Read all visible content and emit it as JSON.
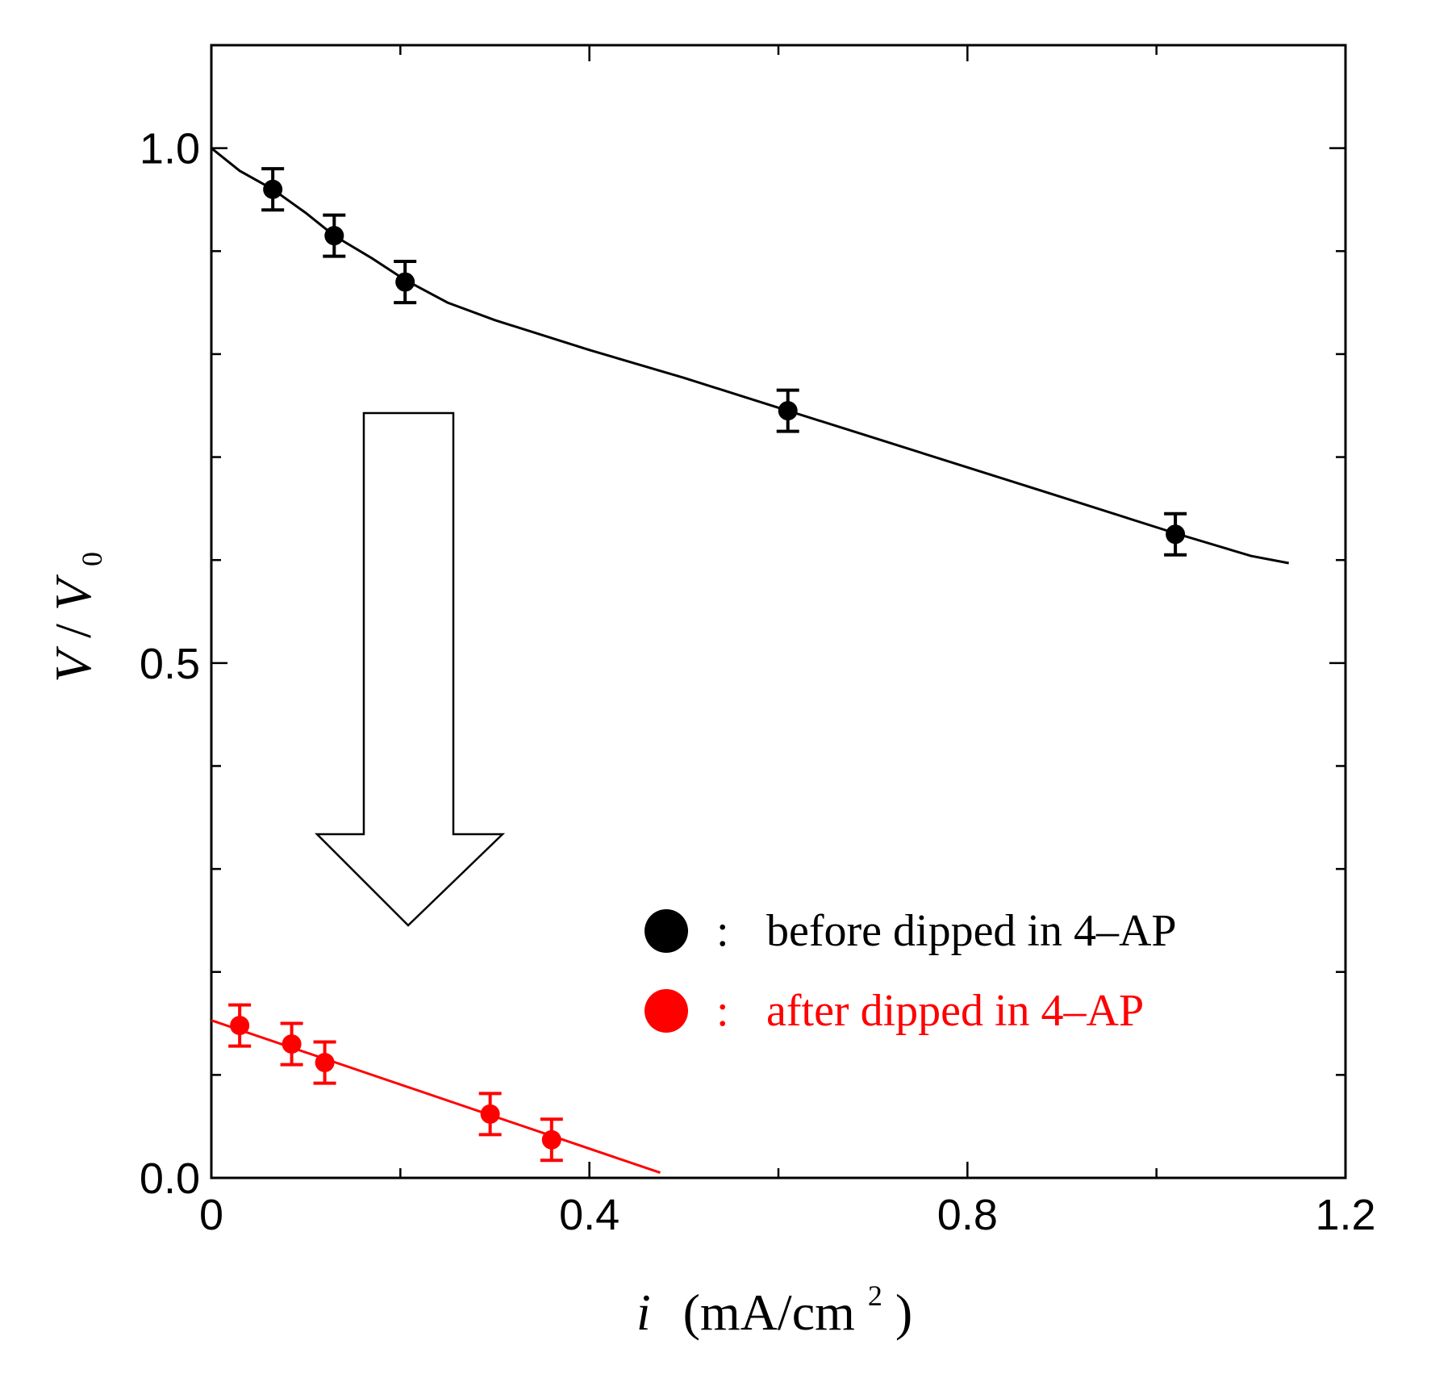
{
  "chart_data": {
    "type": "scatter",
    "title": "",
    "xlabel": {
      "symbol": "i",
      "unit": "(mA/cm",
      "unit_sup": "2",
      "unit_close": ")"
    },
    "ylabel": {
      "numerator": "V",
      "slash": "/",
      "denominator": "V",
      "denominator_sub": "0"
    },
    "xlim": [
      0,
      1.2
    ],
    "ylim": [
      0,
      1.1
    ],
    "x_ticks": [
      {
        "value": 0,
        "label": "0"
      },
      {
        "value": 0.4,
        "label": "0.4"
      },
      {
        "value": 0.8,
        "label": "0.8"
      },
      {
        "value": 1.2,
        "label": "1.2"
      }
    ],
    "y_ticks": [
      {
        "value": 0,
        "label": "0.0"
      },
      {
        "value": 0.5,
        "label": "0.5"
      },
      {
        "value": 1.0,
        "label": "1.0"
      }
    ],
    "x_minor_step": 0.2,
    "y_minor_step": 0.1,
    "grid": false,
    "legend_position": "bottom-right",
    "series": [
      {
        "name": "before dipped in 4–AP",
        "legend_label": "before dipped in 4–AP",
        "legend_sep": ":",
        "color": "#000000",
        "x": [
          0.065,
          0.13,
          0.205,
          0.61,
          1.02
        ],
        "y": [
          0.96,
          0.915,
          0.87,
          0.745,
          0.625
        ],
        "error": [
          0.02,
          0.02,
          0.02,
          0.02,
          0.02
        ],
        "fit": {
          "x": [
            0.0,
            0.03,
            0.065,
            0.1,
            0.13,
            0.17,
            0.205,
            0.25,
            0.3,
            0.4,
            0.5,
            0.61,
            0.7,
            0.8,
            0.9,
            1.02,
            1.1,
            1.14
          ],
          "y": [
            1.0,
            0.978,
            0.96,
            0.937,
            0.915,
            0.893,
            0.872,
            0.85,
            0.833,
            0.804,
            0.777,
            0.745,
            0.719,
            0.69,
            0.661,
            0.626,
            0.604,
            0.597
          ]
        }
      },
      {
        "name": "after dipped in 4–AP",
        "legend_label": "after dipped in 4–AP",
        "legend_sep": ":",
        "color": "#ff0000",
        "x": [
          0.03,
          0.085,
          0.12,
          0.295,
          0.36
        ],
        "y": [
          0.148,
          0.13,
          0.112,
          0.062,
          0.037
        ],
        "error": [
          0.02,
          0.02,
          0.02,
          0.02,
          0.02
        ],
        "fit": {
          "x": [
            0.0,
            0.475
          ],
          "y": [
            0.153,
            0.005
          ]
        }
      }
    ]
  }
}
